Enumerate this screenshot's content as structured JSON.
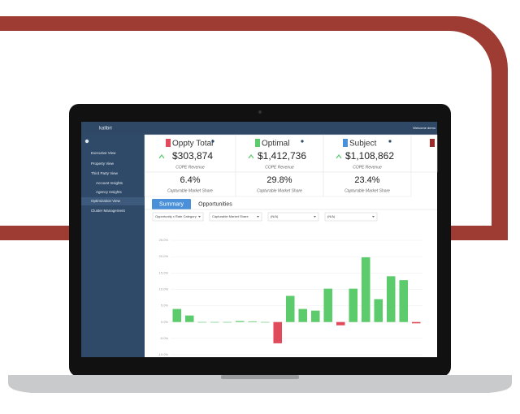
{
  "header": {
    "logo": "kalibri",
    "welcome": "Welcome demo"
  },
  "nav": [
    "Executive View",
    "Property View",
    "Third Party View",
    "Account Insights",
    "Agency Insights",
    "Optimization View",
    "Cluster Management"
  ],
  "cards": [
    {
      "title": "Oppty Total",
      "value": "$303,874",
      "value_caption": "COPE Revenue",
      "share": "6.4%",
      "share_caption": "Capturable Market Share"
    },
    {
      "title": "Optimal",
      "value": "$1,412,736",
      "value_caption": "COPE Revenue",
      "share": "29.8%",
      "share_caption": "Capturable Market Share"
    },
    {
      "title": "Subject",
      "value": "$1,108,862",
      "value_caption": "COPE Revenue",
      "share": "23.4%",
      "share_caption": "Capturable Market Share"
    }
  ],
  "tabs": [
    "Summary",
    "Opportunities"
  ],
  "filters": [
    "Opportunity x Rate Category",
    "Capturable Market Share",
    "(N/A)",
    "(N/A)"
  ],
  "chart_data": {
    "type": "bar",
    "categories": [
      null,
      null,
      null,
      null,
      null,
      null,
      null,
      null,
      null,
      null,
      null,
      null,
      null,
      null,
      null,
      null,
      null,
      null,
      null,
      null
    ],
    "values": [
      4.0,
      2.0,
      0,
      0,
      0,
      0.3,
      0.2,
      0,
      -6.5,
      8.0,
      4.0,
      3.5,
      10.2,
      -1.0,
      10.2,
      19.8,
      7.0,
      14.0,
      12.8,
      -0.4
    ],
    "positive_color": "#5ccb6c",
    "negative_color": "#e04a5b",
    "ylim": [
      -10,
      25
    ],
    "yticks": [
      {
        "value": -10,
        "label": "-10.0%"
      },
      {
        "value": -5,
        "label": "-5.0%"
      },
      {
        "value": 0,
        "label": "0.0%"
      },
      {
        "value": 5,
        "label": "5.0%"
      },
      {
        "value": 10,
        "label": "10.0%"
      },
      {
        "value": 15,
        "label": "15.0%"
      },
      {
        "value": 20,
        "label": "20.0%"
      },
      {
        "value": 25,
        "label": "25.0%"
      }
    ],
    "grid": true
  }
}
